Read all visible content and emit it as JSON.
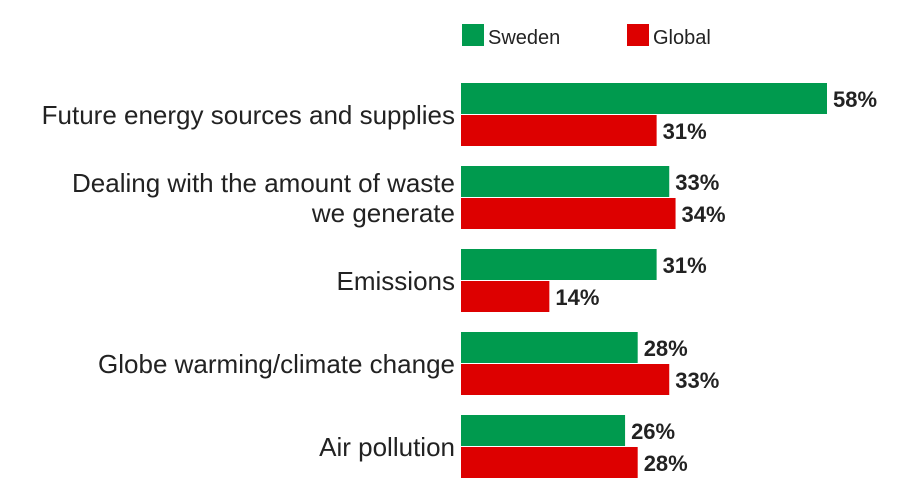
{
  "chart_data": {
    "type": "bar",
    "orientation": "horizontal",
    "categories": [
      "Future energy sources and supplies",
      "Dealing with the amount of waste we generate",
      "Emissions",
      "Globe warming/climate change",
      "Air pollution"
    ],
    "category_lines": [
      [
        "Future energy sources and supplies"
      ],
      [
        "Dealing with the amount of waste",
        "we generate"
      ],
      [
        "Emissions"
      ],
      [
        "Globe warming/climate change"
      ],
      [
        "Air pollution"
      ]
    ],
    "series": [
      {
        "name": "Sweden",
        "color": "#009a4e",
        "values": [
          58,
          33,
          31,
          28,
          26
        ],
        "labels": [
          "58%",
          "33%",
          "31%",
          "28%",
          "26%"
        ]
      },
      {
        "name": "Global",
        "color": "#dd0000",
        "values": [
          31,
          34,
          14,
          33,
          28
        ],
        "labels": [
          "31%",
          "34%",
          "14%",
          "33%",
          "28%"
        ]
      }
    ],
    "xlim": [
      0,
      64
    ],
    "grid": false,
    "legend": "top-right"
  }
}
